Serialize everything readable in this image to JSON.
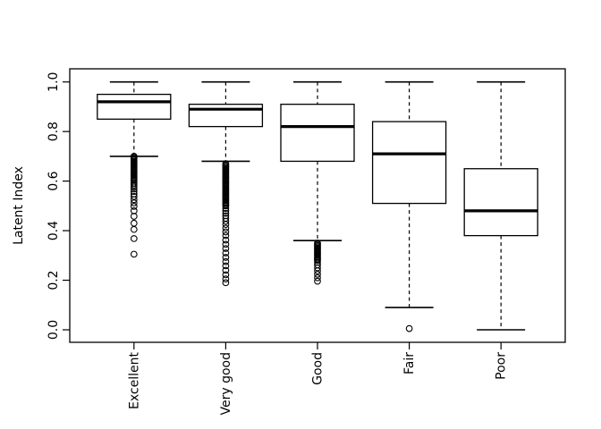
{
  "figure": {
    "background": "#ffffff",
    "stroke_color": "#000000",
    "box_fill": "#ffffff"
  },
  "chart_data": {
    "type": "boxplot",
    "title": "",
    "xlabel": "",
    "ylabel": "Latent Index",
    "ylim": [
      0.0,
      1.0
    ],
    "grid": false,
    "legend": false,
    "yticks": [
      0.0,
      0.2,
      0.4,
      0.6,
      0.8,
      1.0
    ],
    "ytick_labels": [
      "0.0",
      "0.2",
      "0.4",
      "0.6",
      "0.8",
      "1.0"
    ],
    "categories": [
      "Excellent",
      "Very good",
      "Good",
      "Fair",
      "Poor"
    ],
    "series": [
      {
        "name": "Excellent",
        "whisker_low": 0.7,
        "q1": 0.85,
        "median": 0.92,
        "q3": 0.95,
        "whisker_high": 1.0,
        "outliers": [
          0.7,
          0.695,
          0.69,
          0.685,
          0.68,
          0.675,
          0.67,
          0.665,
          0.66,
          0.655,
          0.65,
          0.645,
          0.64,
          0.635,
          0.63,
          0.625,
          0.62,
          0.615,
          0.61,
          0.605,
          0.6,
          0.592,
          0.584,
          0.576,
          0.568,
          0.558,
          0.548,
          0.538,
          0.525,
          0.512,
          0.498,
          0.48,
          0.458,
          0.43,
          0.405,
          0.368,
          0.305
        ]
      },
      {
        "name": "Very good",
        "whisker_low": 0.68,
        "q1": 0.82,
        "median": 0.89,
        "q3": 0.91,
        "whisker_high": 1.0,
        "outliers": [
          0.67,
          0.665,
          0.66,
          0.655,
          0.65,
          0.645,
          0.64,
          0.635,
          0.63,
          0.625,
          0.62,
          0.615,
          0.61,
          0.605,
          0.6,
          0.595,
          0.59,
          0.585,
          0.58,
          0.575,
          0.57,
          0.565,
          0.56,
          0.555,
          0.55,
          0.545,
          0.54,
          0.535,
          0.53,
          0.525,
          0.52,
          0.515,
          0.51,
          0.505,
          0.5,
          0.49,
          0.48,
          0.47,
          0.46,
          0.45,
          0.438,
          0.425,
          0.41,
          0.395,
          0.38,
          0.362,
          0.345,
          0.328,
          0.31,
          0.292,
          0.275,
          0.258,
          0.24,
          0.222,
          0.205,
          0.19
        ]
      },
      {
        "name": "Good",
        "whisker_low": 0.36,
        "q1": 0.68,
        "median": 0.82,
        "q3": 0.91,
        "whisker_high": 1.0,
        "outliers": [
          0.35,
          0.345,
          0.34,
          0.335,
          0.33,
          0.325,
          0.32,
          0.315,
          0.31,
          0.305,
          0.3,
          0.295,
          0.29,
          0.285,
          0.28,
          0.272,
          0.262,
          0.25,
          0.238,
          0.224,
          0.21,
          0.196
        ]
      },
      {
        "name": "Fair",
        "whisker_low": 0.09,
        "q1": 0.51,
        "median": 0.71,
        "q3": 0.84,
        "whisker_high": 1.0,
        "outliers": [
          0.005
        ]
      },
      {
        "name": "Poor",
        "whisker_low": 0.0,
        "q1": 0.38,
        "median": 0.48,
        "q3": 0.65,
        "whisker_high": 1.0,
        "outliers": []
      }
    ]
  }
}
